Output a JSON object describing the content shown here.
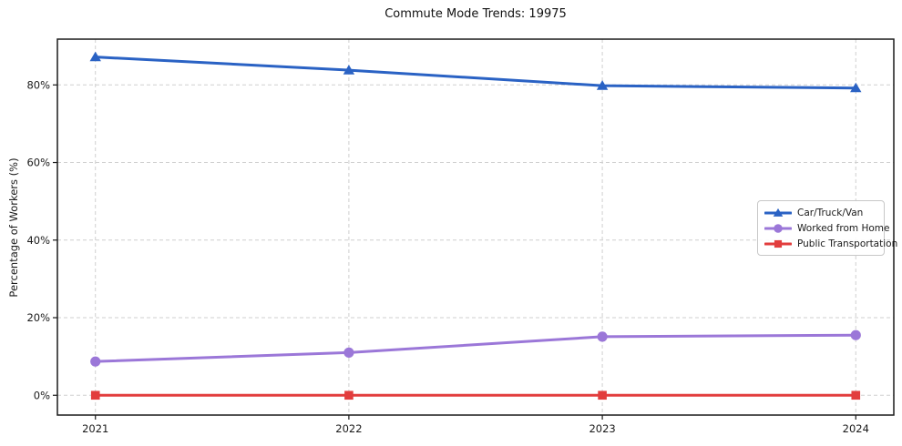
{
  "title": "Commute Mode Trends: 19975",
  "y_axis_label": "Percentage of Workers (%)",
  "chart_data": {
    "type": "line",
    "title": "Commute Mode Trends: 19975",
    "xlabel": "",
    "ylabel": "Percentage of Workers (%)",
    "x": [
      2021,
      2022,
      2023,
      2024
    ],
    "x_tick_labels": [
      "2021",
      "2022",
      "2023",
      "2024"
    ],
    "y_ticks": [
      0,
      20,
      40,
      60,
      80
    ],
    "y_tick_labels": [
      "0%",
      "20%",
      "40%",
      "60%",
      "80%"
    ],
    "xlim": [
      2020.85,
      2024.15
    ],
    "ylim": [
      -5.1,
      91.8
    ],
    "grid": true,
    "grid_style": "dashed",
    "legend_position": "center-right",
    "series": [
      {
        "name": "Car/Truck/Van",
        "marker": "triangle",
        "color": "#2a62c4",
        "values": [
          87.2,
          83.8,
          79.8,
          79.2
        ]
      },
      {
        "name": "Worked from Home",
        "marker": "circle",
        "color": "#9b77d8",
        "values": [
          8.7,
          11.0,
          15.1,
          15.5
        ]
      },
      {
        "name": "Public Transportation",
        "marker": "square",
        "color": "#e23d3d",
        "values": [
          0.0,
          0.0,
          0.0,
          0.0
        ]
      }
    ]
  },
  "colors": {
    "background": "#ffffff",
    "grid": "#cfcfcf",
    "spine": "#1a1a1a",
    "legend_border": "#c8c8c8"
  }
}
